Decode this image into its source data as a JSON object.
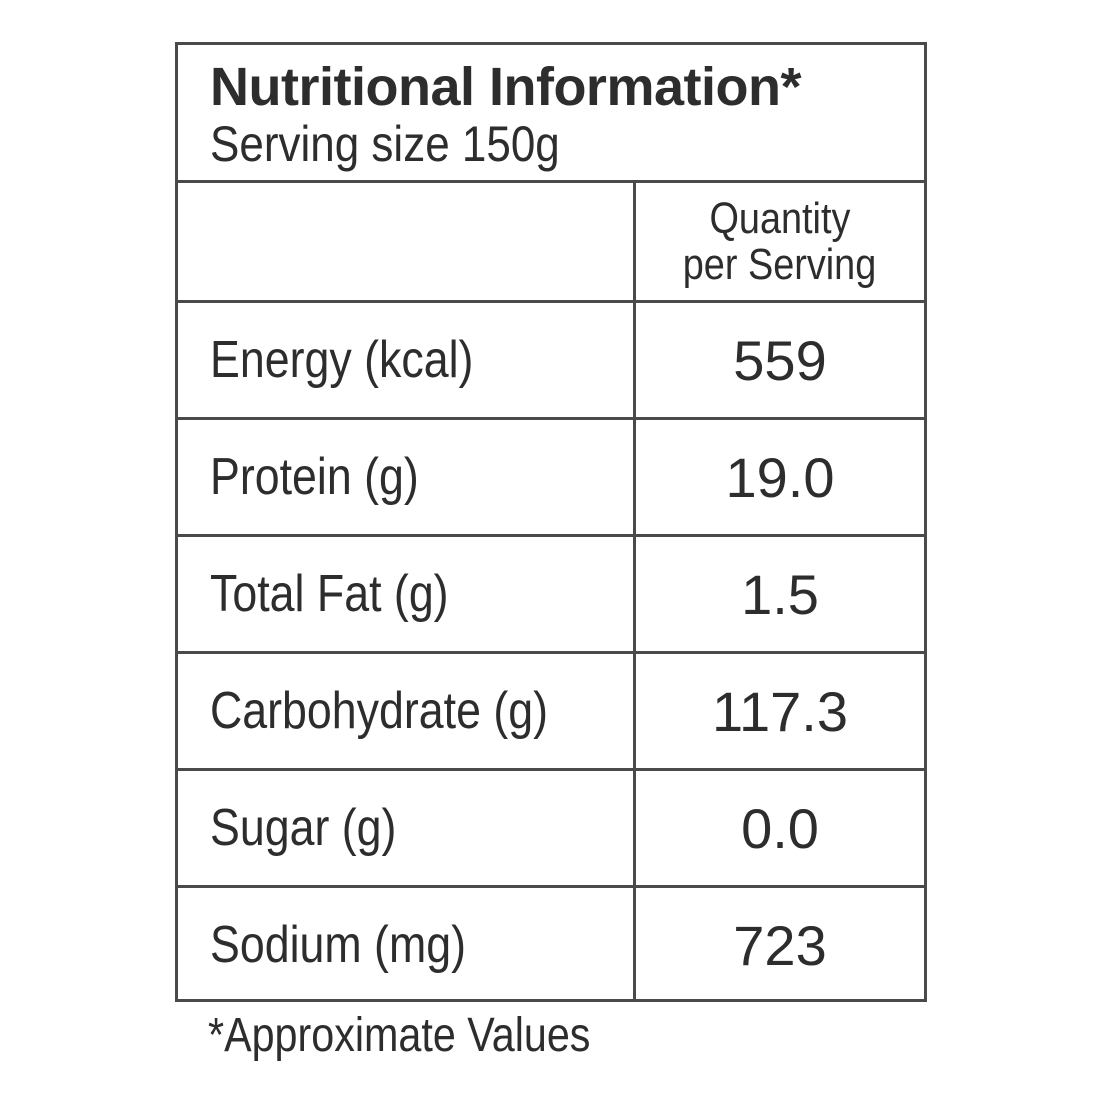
{
  "header": {
    "title": "Nutritional Information*",
    "serving_size": "Serving size 150g"
  },
  "table": {
    "column_header_line1": "Quantity",
    "column_header_line2": "per Serving",
    "rows": [
      {
        "label": "Energy (kcal)",
        "value": "559"
      },
      {
        "label": "Protein (g)",
        "value": "19.0"
      },
      {
        "label": "Total Fat (g)",
        "value": "1.5"
      },
      {
        "label": "Carbohydrate (g)",
        "value": "117.3"
      },
      {
        "label": "Sugar (g)",
        "value": "0.0"
      },
      {
        "label": "Sodium (mg)",
        "value": "723"
      }
    ]
  },
  "footnote": "*Approximate Values"
}
